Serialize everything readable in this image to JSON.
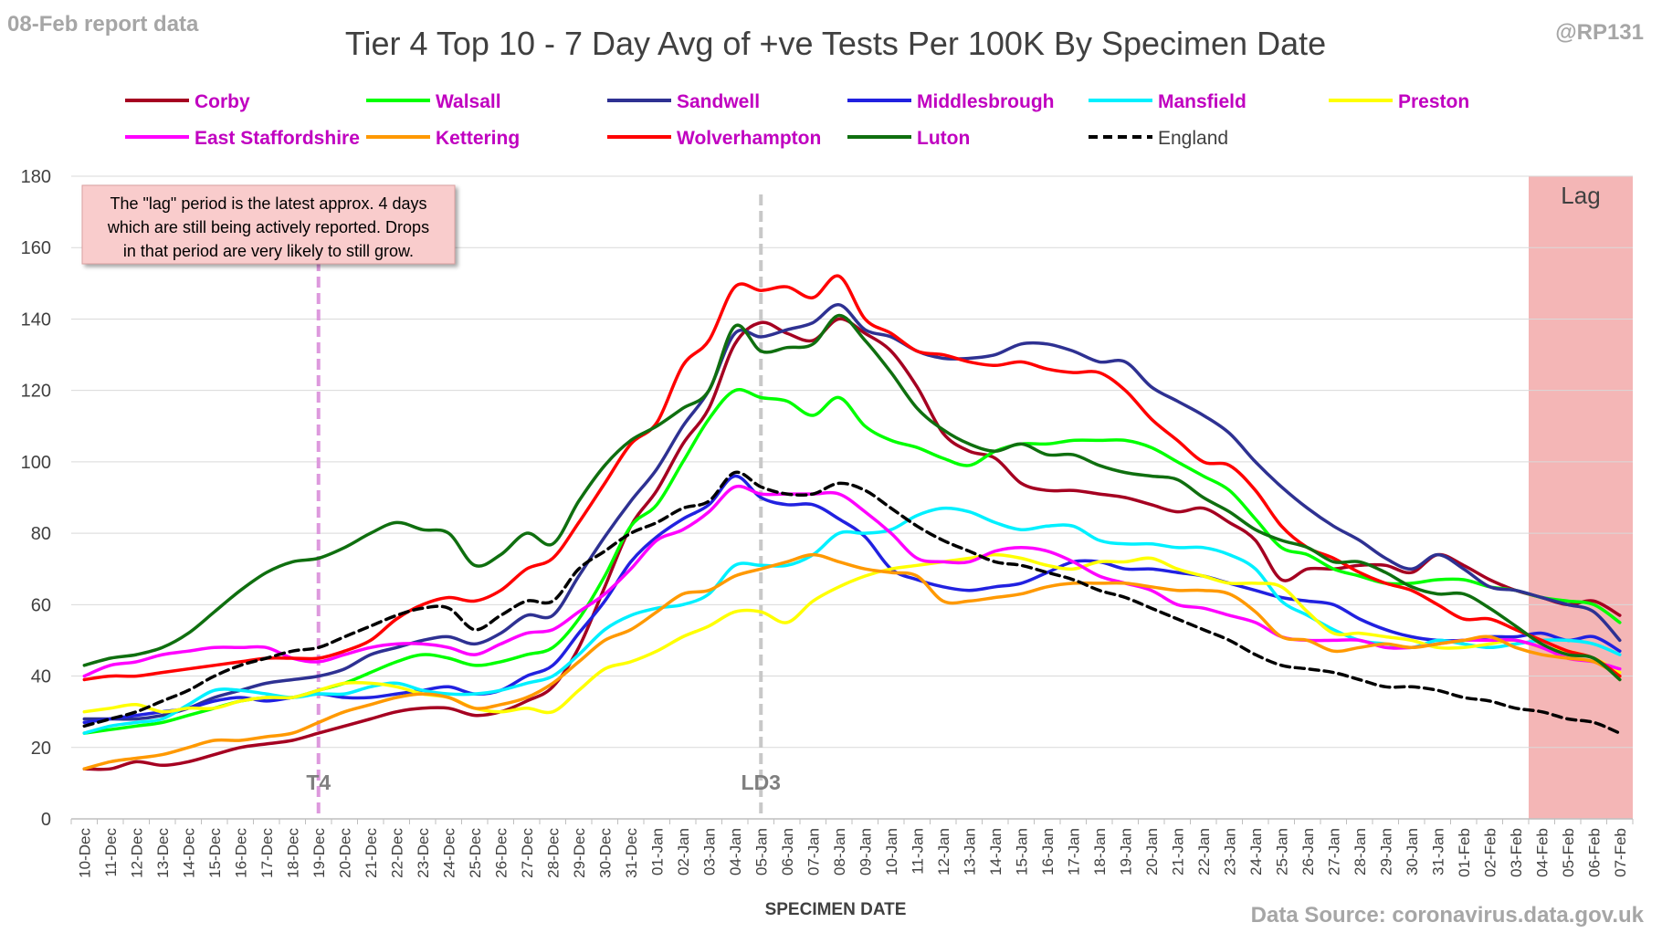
{
  "header": {
    "report_label": "08-Feb report data",
    "handle": "@RP131",
    "source": "Data Source: coronavirus.data.gov.uk"
  },
  "chart_data": {
    "type": "line",
    "title": "Tier 4 Top 10 - 7 Day Avg of +ve Tests Per 100K By Specimen Date",
    "xlabel": "SPECIMEN DATE",
    "ylabel": "",
    "ylim": [
      0,
      180
    ],
    "yticks": [
      0,
      20,
      40,
      60,
      80,
      100,
      120,
      140,
      160,
      180
    ],
    "grid": true,
    "legend_position": "top",
    "x": [
      "10-Dec",
      "11-Dec",
      "12-Dec",
      "13-Dec",
      "14-Dec",
      "15-Dec",
      "16-Dec",
      "17-Dec",
      "18-Dec",
      "19-Dec",
      "20-Dec",
      "21-Dec",
      "22-Dec",
      "23-Dec",
      "24-Dec",
      "25-Dec",
      "26-Dec",
      "27-Dec",
      "28-Dec",
      "29-Dec",
      "30-Dec",
      "31-Dec",
      "01-Jan",
      "02-Jan",
      "03-Jan",
      "04-Jan",
      "05-Jan",
      "06-Jan",
      "07-Jan",
      "08-Jan",
      "09-Jan",
      "10-Jan",
      "11-Jan",
      "12-Jan",
      "13-Jan",
      "14-Jan",
      "15-Jan",
      "16-Jan",
      "17-Jan",
      "18-Jan",
      "19-Jan",
      "20-Jan",
      "21-Jan",
      "22-Jan",
      "23-Jan",
      "24-Jan",
      "25-Jan",
      "26-Jan",
      "27-Jan",
      "28-Jan",
      "29-Jan",
      "30-Jan",
      "31-Jan",
      "01-Feb",
      "02-Feb",
      "03-Feb",
      "04-Feb",
      "05-Feb",
      "06-Feb",
      "07-Feb"
    ],
    "series": [
      {
        "name": "Corby",
        "color": "#a50021",
        "dash": "none",
        "values": [
          14,
          14,
          16,
          15,
          16,
          18,
          20,
          21,
          22,
          24,
          26,
          28,
          30,
          31,
          31,
          29,
          30,
          33,
          37,
          48,
          65,
          82,
          92,
          105,
          115,
          133,
          139,
          136,
          134,
          140,
          136,
          131,
          121,
          108,
          103,
          101,
          94,
          92,
          92,
          91,
          90,
          88,
          86,
          87,
          83,
          78,
          67,
          70,
          70,
          71,
          71,
          69,
          74,
          71,
          67,
          64,
          62,
          60,
          61,
          57
        ]
      },
      {
        "name": "Walsall",
        "color": "#00ff00",
        "dash": "none",
        "values": [
          24,
          25,
          26,
          27,
          29,
          31,
          33,
          34,
          34,
          36,
          38,
          41,
          44,
          46,
          45,
          43,
          44,
          46,
          48,
          56,
          68,
          82,
          88,
          100,
          112,
          120,
          118,
          117,
          113,
          118,
          110,
          106,
          104,
          101,
          99,
          103,
          105,
          105,
          106,
          106,
          106,
          104,
          100,
          96,
          92,
          84,
          76,
          74,
          70,
          68,
          66,
          66,
          67,
          67,
          65,
          64,
          62,
          61,
          60,
          55
        ]
      },
      {
        "name": "Sandwell",
        "color": "#2e3192",
        "dash": "none",
        "values": [
          28,
          28,
          28,
          29,
          31,
          34,
          36,
          38,
          39,
          40,
          42,
          46,
          48,
          50,
          51,
          49,
          52,
          57,
          57,
          68,
          79,
          89,
          98,
          110,
          120,
          136,
          135,
          137,
          139,
          144,
          137,
          135,
          131,
          129,
          129,
          130,
          133,
          133,
          131,
          128,
          128,
          121,
          117,
          113,
          108,
          100,
          93,
          87,
          82,
          78,
          73,
          70,
          74,
          70,
          65,
          64,
          62,
          60,
          58,
          50
        ]
      },
      {
        "name": "Middlesbrough",
        "color": "#2121e0",
        "dash": "none",
        "values": [
          27,
          28,
          29,
          30,
          31,
          33,
          34,
          33,
          34,
          35,
          34,
          34,
          35,
          36,
          37,
          35,
          36,
          40,
          43,
          52,
          61,
          72,
          79,
          84,
          88,
          96,
          90,
          88,
          88,
          84,
          79,
          70,
          67,
          65,
          64,
          65,
          66,
          69,
          72,
          72,
          70,
          70,
          69,
          68,
          66,
          64,
          62,
          61,
          60,
          56,
          53,
          51,
          50,
          50,
          51,
          51,
          52,
          50,
          51,
          47
        ]
      },
      {
        "name": "Mansfield",
        "color": "#00f0ff",
        "dash": "none",
        "values": [
          24,
          26,
          27,
          28,
          32,
          36,
          36,
          35,
          34,
          35,
          35,
          37,
          38,
          36,
          35,
          35,
          36,
          38,
          40,
          46,
          53,
          57,
          59,
          60,
          63,
          71,
          71,
          71,
          74,
          80,
          80,
          81,
          85,
          87,
          86,
          83,
          81,
          82,
          82,
          78,
          77,
          77,
          76,
          76,
          74,
          70,
          61,
          57,
          53,
          50,
          49,
          48,
          50,
          49,
          48,
          49,
          50,
          50,
          49,
          46
        ]
      },
      {
        "name": "Preston",
        "color": "#ffff00",
        "dash": "none",
        "values": [
          30,
          31,
          32,
          30,
          31,
          31,
          33,
          34,
          34,
          36,
          38,
          38,
          37,
          35,
          34,
          31,
          30,
          31,
          30,
          36,
          42,
          44,
          47,
          51,
          54,
          58,
          58,
          55,
          61,
          65,
          68,
          70,
          71,
          72,
          73,
          74,
          73,
          71,
          70,
          72,
          72,
          73,
          70,
          68,
          66,
          66,
          65,
          58,
          52,
          52,
          51,
          50,
          48,
          48,
          49,
          50,
          48,
          47,
          45,
          41
        ]
      },
      {
        "name": "East Staffordshire",
        "color": "#ff00ff",
        "dash": "none",
        "values": [
          40,
          43,
          44,
          46,
          47,
          48,
          48,
          48,
          45,
          44,
          46,
          48,
          49,
          49,
          48,
          46,
          49,
          52,
          53,
          58,
          63,
          70,
          78,
          81,
          86,
          93,
          91,
          91,
          91,
          91,
          86,
          80,
          73,
          72,
          72,
          75,
          76,
          75,
          72,
          68,
          66,
          64,
          60,
          59,
          57,
          55,
          51,
          50,
          50,
          50,
          48,
          48,
          49,
          50,
          50,
          50,
          48,
          45,
          44,
          42
        ]
      },
      {
        "name": "Kettering",
        "color": "#ff9900",
        "dash": "none",
        "values": [
          14,
          16,
          17,
          18,
          20,
          22,
          22,
          23,
          24,
          27,
          30,
          32,
          34,
          35,
          34,
          31,
          32,
          34,
          38,
          44,
          50,
          53,
          58,
          63,
          64,
          68,
          70,
          72,
          74,
          72,
          70,
          69,
          68,
          61,
          61,
          62,
          63,
          65,
          66,
          66,
          66,
          65,
          64,
          64,
          63,
          58,
          51,
          50,
          47,
          48,
          49,
          48,
          49,
          50,
          51,
          48,
          46,
          45,
          44,
          40
        ]
      },
      {
        "name": "Wolverhampton",
        "color": "#ff0000",
        "dash": "none",
        "values": [
          39,
          40,
          40,
          41,
          42,
          43,
          44,
          45,
          45,
          45,
          47,
          50,
          56,
          60,
          62,
          61,
          64,
          70,
          73,
          83,
          94,
          105,
          111,
          127,
          134,
          149,
          148,
          149,
          146,
          152,
          140,
          136,
          131,
          130,
          128,
          127,
          128,
          126,
          125,
          125,
          120,
          112,
          106,
          100,
          99,
          92,
          82,
          76,
          73,
          69,
          66,
          64,
          60,
          56,
          56,
          53,
          50,
          47,
          45,
          40
        ]
      },
      {
        "name": "Luton",
        "color": "#0f6f0f",
        "dash": "none",
        "values": [
          43,
          45,
          46,
          48,
          52,
          58,
          64,
          69,
          72,
          73,
          76,
          80,
          83,
          81,
          80,
          71,
          74,
          80,
          77,
          89,
          99,
          106,
          110,
          115,
          120,
          138,
          131,
          132,
          133,
          141,
          134,
          125,
          115,
          109,
          105,
          103,
          105,
          102,
          102,
          99,
          97,
          96,
          95,
          90,
          86,
          81,
          78,
          76,
          72,
          72,
          69,
          65,
          63,
          63,
          59,
          54,
          49,
          46,
          45,
          39
        ]
      },
      {
        "name": "England",
        "color": "#000000",
        "dash": "dashed",
        "values": [
          26,
          28,
          30,
          33,
          36,
          40,
          43,
          45,
          47,
          48,
          51,
          54,
          57,
          59,
          59,
          53,
          57,
          61,
          61,
          70,
          75,
          80,
          83,
          87,
          89,
          97,
          93,
          91,
          91,
          94,
          92,
          87,
          82,
          78,
          75,
          72,
          71,
          69,
          67,
          64,
          62,
          59,
          56,
          53,
          50,
          46,
          43,
          42,
          41,
          39,
          37,
          37,
          36,
          34,
          33,
          31,
          30,
          28,
          27,
          24
        ]
      }
    ],
    "vlines": [
      {
        "x": "19-Dec",
        "label": "T4",
        "color": "#dd99dd"
      },
      {
        "x": "05-Jan",
        "label": "LD3",
        "color": "#c8c8c8"
      }
    ],
    "lag": {
      "from": "04-Feb",
      "to": "07-Feb",
      "label": "Lag",
      "color": "#f4b6b6"
    },
    "annotation": {
      "lines": [
        "The \"lag\" period is the latest approx. 4 days",
        "which are still being actively reported.  Drops",
        "in that period are very likely to still grow."
      ],
      "background": "#f9cccc"
    }
  }
}
